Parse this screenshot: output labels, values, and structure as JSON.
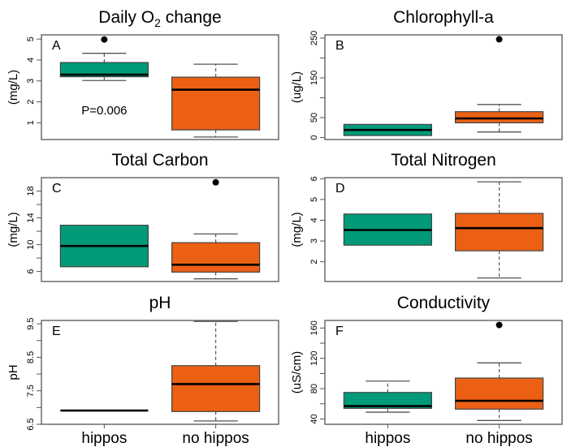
{
  "colors": {
    "hippos": "#009a78",
    "no_hippos": "#ec6014",
    "frame": "#555555",
    "median": "#000000",
    "whisker": "#555555",
    "outlier": "#000000"
  },
  "chart_data": [
    {
      "type": "box",
      "panel": "A",
      "title": "Daily O",
      "title_subscript": "2",
      "title_suffix": " change",
      "ylabel": "(mg/L)",
      "ylim": [
        0.2,
        5.2
      ],
      "yticks": [
        1,
        2,
        3,
        4,
        5
      ],
      "ytick_labels": [
        "1",
        "2",
        "3",
        "4",
        "5"
      ],
      "annotation": "P=0.006",
      "categories": [
        "hippos",
        "no hippos"
      ],
      "show_xlabels": false,
      "boxes": [
        {
          "group": "hippos",
          "min": 3.02,
          "q1": 3.2,
          "median": 3.3,
          "q3": 3.88,
          "max": 4.32,
          "outliers": [
            4.98
          ]
        },
        {
          "group": "no hippos",
          "min": 0.32,
          "q1": 0.66,
          "median": 2.58,
          "q3": 3.18,
          "max": 3.8,
          "outliers": []
        }
      ]
    },
    {
      "type": "box",
      "panel": "B",
      "title": "Chlorophyll-a",
      "ylabel": "(ug/L)",
      "ylim": [
        -5,
        258
      ],
      "yticks": [
        0,
        50,
        100,
        150,
        200,
        250
      ],
      "ytick_labels": [
        "0",
        "50",
        "",
        "150",
        "",
        "250"
      ],
      "categories": [
        "hippos",
        "no hippos"
      ],
      "show_xlabels": false,
      "boxes": [
        {
          "group": "hippos",
          "min": 5,
          "q1": 5,
          "median": 19,
          "q3": 33,
          "max": 33,
          "outliers": []
        },
        {
          "group": "no hippos",
          "min": 14,
          "q1": 37,
          "median": 48,
          "q3": 65,
          "max": 83,
          "outliers": [
            247
          ]
        }
      ]
    },
    {
      "type": "box",
      "panel": "C",
      "title": "Total Carbon",
      "ylabel": "(mg/L)",
      "ylim": [
        4.5,
        20.0
      ],
      "yticks": [
        6,
        8,
        10,
        12,
        14,
        16,
        18
      ],
      "ytick_labels": [
        "6",
        "",
        "10",
        "",
        "14",
        "",
        "18"
      ],
      "categories": [
        "hippos",
        "no hippos"
      ],
      "show_xlabels": false,
      "boxes": [
        {
          "group": "hippos",
          "min": 6.7,
          "q1": 6.7,
          "median": 9.8,
          "q3": 12.9,
          "max": 12.9,
          "outliers": []
        },
        {
          "group": "no hippos",
          "min": 4.9,
          "q1": 5.9,
          "median": 7.0,
          "q3": 10.3,
          "max": 11.6,
          "outliers": [
            19.3
          ]
        }
      ]
    },
    {
      "type": "box",
      "panel": "D",
      "title": "Total Nitrogen",
      "ylabel": "(mg/L)",
      "ylim": [
        1.05,
        6.05
      ],
      "yticks": [
        2,
        3,
        4,
        5,
        6
      ],
      "ytick_labels": [
        "2",
        "3",
        "4",
        "5",
        "6"
      ],
      "categories": [
        "hippos",
        "no hippos"
      ],
      "show_xlabels": false,
      "boxes": [
        {
          "group": "hippos",
          "min": 2.8,
          "q1": 2.8,
          "median": 3.53,
          "q3": 4.3,
          "max": 4.3,
          "outliers": []
        },
        {
          "group": "no hippos",
          "min": 1.22,
          "q1": 2.53,
          "median": 3.62,
          "q3": 4.33,
          "max": 5.85,
          "outliers": []
        }
      ]
    },
    {
      "type": "box",
      "panel": "E",
      "title": "pH",
      "ylabel": "pH",
      "ylim": [
        6.5,
        9.6
      ],
      "yticks": [
        6.5,
        7.0,
        7.5,
        8.0,
        8.5,
        9.0,
        9.5
      ],
      "ytick_labels": [
        "6.5",
        "",
        "7.5",
        "",
        "8.5",
        "",
        "9.5"
      ],
      "categories": [
        "hippos",
        "no hippos"
      ],
      "show_xlabels": true,
      "boxes": [
        {
          "group": "hippos",
          "min": 6.91,
          "q1": 6.91,
          "median": 6.91,
          "q3": 6.91,
          "max": 6.91,
          "outliers": []
        },
        {
          "group": "no hippos",
          "min": 6.6,
          "q1": 6.88,
          "median": 7.7,
          "q3": 8.25,
          "max": 9.57,
          "outliers": []
        }
      ]
    },
    {
      "type": "box",
      "panel": "F",
      "title": "Conductivity",
      "ylabel": "(uS/cm)",
      "ylim": [
        33,
        170
      ],
      "yticks": [
        40,
        60,
        80,
        100,
        120,
        140,
        160
      ],
      "ytick_labels": [
        "40",
        "",
        "80",
        "",
        "120",
        "",
        "160"
      ],
      "categories": [
        "hippos",
        "no hippos"
      ],
      "show_xlabels": true,
      "boxes": [
        {
          "group": "hippos",
          "min": 49,
          "q1": 54,
          "median": 57,
          "q3": 75,
          "max": 90,
          "outliers": []
        },
        {
          "group": "no hippos",
          "min": 38,
          "q1": 53,
          "median": 64,
          "q3": 94,
          "max": 114,
          "outliers": [
            164
          ]
        }
      ]
    }
  ]
}
